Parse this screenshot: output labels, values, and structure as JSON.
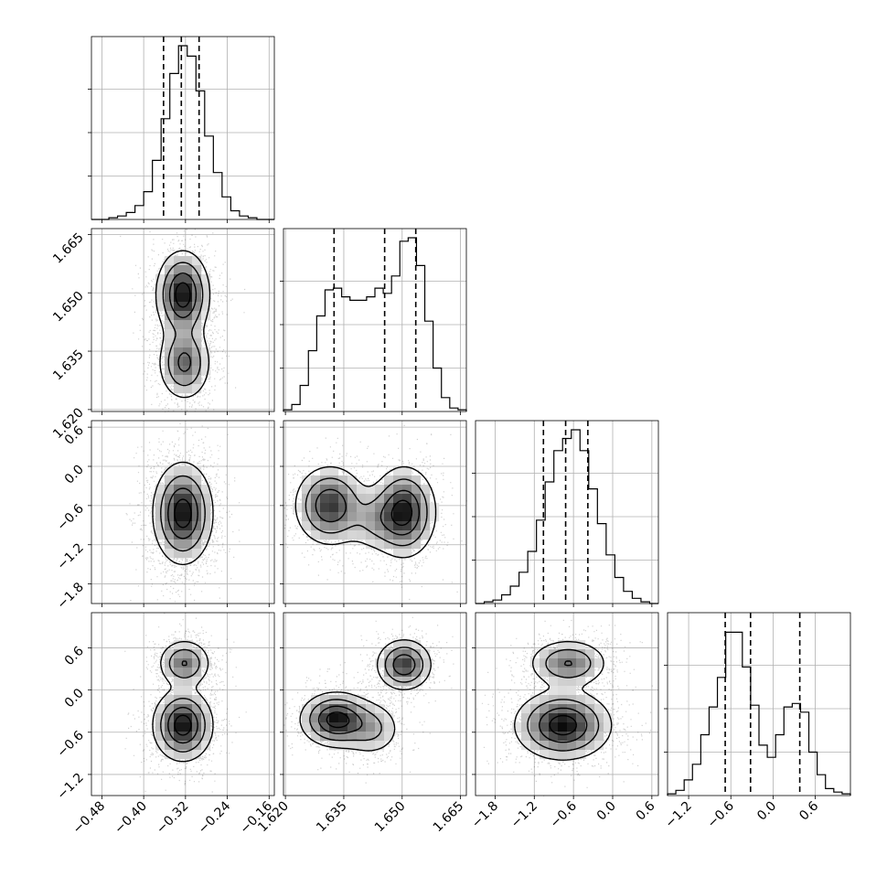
{
  "chart_data": {
    "type": "corner",
    "n_params": 4,
    "grid": true,
    "params": [
      {
        "range": [
          -0.5,
          -0.15
        ],
        "ticks": [
          -0.48,
          -0.4,
          -0.32,
          -0.24,
          -0.16
        ],
        "tick_labels": [
          "−0.48",
          "−0.40",
          "−0.32",
          "−0.24",
          "−0.16"
        ],
        "quantiles": [
          -0.362,
          -0.328,
          -0.294
        ],
        "hist": [
          0,
          0,
          0.01,
          0.02,
          0.04,
          0.08,
          0.16,
          0.34,
          0.58,
          0.84,
          1.0,
          0.94,
          0.74,
          0.48,
          0.27,
          0.13,
          0.05,
          0.02,
          0.01,
          0,
          0
        ]
      },
      {
        "range": [
          1.6195,
          1.6665
        ],
        "ticks": [
          1.62,
          1.635,
          1.65,
          1.665
        ],
        "tick_labels": [
          "1.620",
          "1.635",
          "1.650",
          "1.665"
        ],
        "quantiles": [
          1.6325,
          1.6455,
          1.6535
        ],
        "hist": [
          0.01,
          0.04,
          0.15,
          0.35,
          0.55,
          0.7,
          0.71,
          0.66,
          0.64,
          0.64,
          0.66,
          0.71,
          0.68,
          0.78,
          0.98,
          1.0,
          0.84,
          0.52,
          0.25,
          0.08,
          0.02,
          0.01
        ]
      },
      {
        "range": [
          -2.1,
          0.7
        ],
        "ticks": [
          -1.8,
          -1.2,
          -0.6,
          0.0,
          0.6
        ],
        "tick_labels": [
          "−1.8",
          "−1.2",
          "−0.6",
          "0.0",
          "0.6"
        ],
        "quantiles": [
          -1.06,
          -0.72,
          -0.38
        ],
        "hist": [
          0,
          0.01,
          0.02,
          0.05,
          0.1,
          0.18,
          0.3,
          0.48,
          0.7,
          0.88,
          0.95,
          1.0,
          0.88,
          0.66,
          0.46,
          0.28,
          0.15,
          0.07,
          0.03,
          0.01,
          0
        ]
      },
      {
        "range": [
          -1.5,
          1.1
        ],
        "ticks": [
          -1.2,
          -0.6,
          0.0,
          0.6
        ],
        "tick_labels": [
          "−1.2",
          "−0.6",
          "0.0",
          "0.6"
        ],
        "quantiles": [
          -0.68,
          -0.32,
          0.38
        ],
        "hist": [
          0.01,
          0.03,
          0.09,
          0.18,
          0.35,
          0.51,
          0.68,
          0.94,
          0.94,
          0.74,
          0.52,
          0.29,
          0.22,
          0.35,
          0.51,
          0.53,
          0.48,
          0.25,
          0.12,
          0.04,
          0.02,
          0.01
        ]
      }
    ],
    "scatter_density": [
      {
        "row": 1,
        "col": 0,
        "modes": [
          {
            "x": -0.325,
            "y": 1.6495,
            "sx": 0.025,
            "sy": 0.0055,
            "w": 0.6
          },
          {
            "x": -0.322,
            "y": 1.632,
            "sx": 0.025,
            "sy": 0.0048,
            "w": 0.4
          }
        ]
      },
      {
        "row": 2,
        "col": 0,
        "modes": [
          {
            "x": -0.325,
            "y": -0.72,
            "sx": 0.028,
            "sy": 0.38,
            "w": 1.0
          }
        ]
      },
      {
        "row": 2,
        "col": 1,
        "modes": [
          {
            "x": 1.6315,
            "y": -0.6,
            "sx": 0.0045,
            "sy": 0.3,
            "w": 0.4
          },
          {
            "x": 1.6505,
            "y": -0.7,
            "sx": 0.004,
            "sy": 0.34,
            "w": 0.45
          },
          {
            "x": 1.643,
            "y": -0.82,
            "sx": 0.004,
            "sy": 0.25,
            "w": 0.15
          }
        ]
      },
      {
        "row": 3,
        "col": 0,
        "modes": [
          {
            "x": -0.322,
            "y": 0.38,
            "sx": 0.025,
            "sy": 0.17,
            "w": 0.38
          },
          {
            "x": -0.325,
            "y": -0.5,
            "sx": 0.028,
            "sy": 0.25,
            "w": 0.62
          }
        ]
      },
      {
        "row": 3,
        "col": 1,
        "modes": [
          {
            "x": 1.6505,
            "y": 0.36,
            "sx": 0.0035,
            "sy": 0.18,
            "w": 0.38
          },
          {
            "x": 1.633,
            "y": -0.42,
            "sx": 0.0045,
            "sy": 0.19,
            "w": 0.45
          },
          {
            "x": 1.642,
            "y": -0.55,
            "sx": 0.004,
            "sy": 0.2,
            "w": 0.17
          }
        ]
      },
      {
        "row": 3,
        "col": 2,
        "modes": [
          {
            "x": -0.68,
            "y": 0.38,
            "sx": 0.3,
            "sy": 0.17,
            "w": 0.38
          },
          {
            "x": -0.76,
            "y": -0.5,
            "sx": 0.36,
            "sy": 0.24,
            "w": 0.62
          }
        ]
      }
    ]
  }
}
